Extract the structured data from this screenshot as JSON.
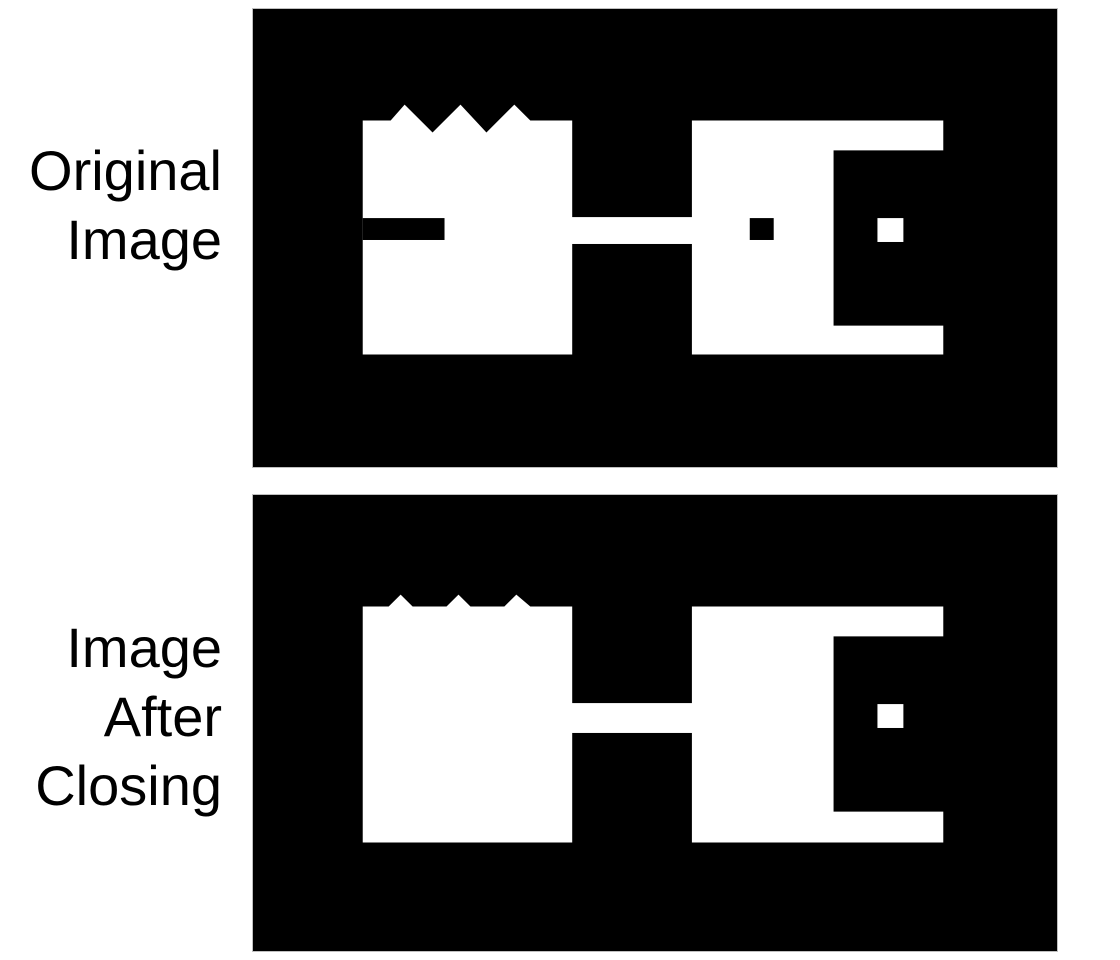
{
  "labels": {
    "original": [
      "Original",
      "Image"
    ],
    "closing": [
      "Image",
      "After",
      "Closing"
    ]
  },
  "colors": {
    "background": "#000000",
    "foreground": "#ffffff"
  }
}
